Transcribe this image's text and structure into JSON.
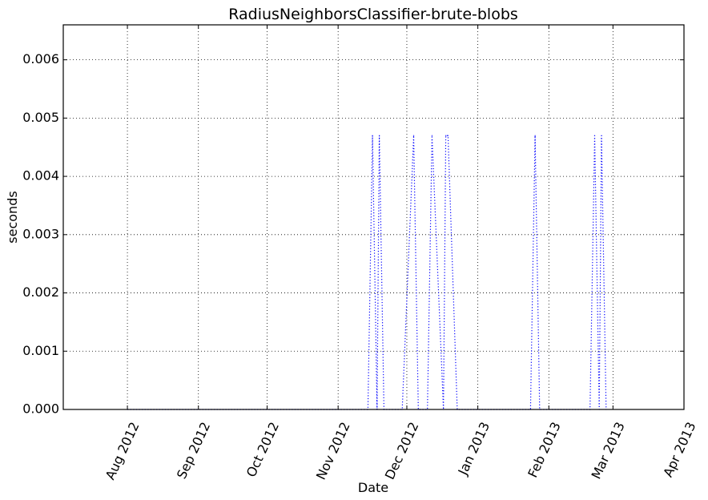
{
  "chart_data": {
    "type": "line",
    "title": "RadiusNeighborsClassifier-brute-blobs",
    "xlabel": "Date",
    "ylabel": "seconds",
    "xlim": [
      "2012-07-04",
      "2013-04-01"
    ],
    "ylim": [
      0,
      0.0066
    ],
    "grid": true,
    "x_ticks": [
      {
        "date": "2012-08-01",
        "label": "Aug 2012"
      },
      {
        "date": "2012-09-01",
        "label": "Sep 2012"
      },
      {
        "date": "2012-10-01",
        "label": "Oct 2012"
      },
      {
        "date": "2012-11-01",
        "label": "Nov 2012"
      },
      {
        "date": "2012-12-01",
        "label": "Dec 2012"
      },
      {
        "date": "2013-01-01",
        "label": "Jan 2013"
      },
      {
        "date": "2013-02-01",
        "label": "Feb 2013"
      },
      {
        "date": "2013-03-01",
        "label": "Mar 2013"
      },
      {
        "date": "2013-04-01",
        "label": "Apr 2013"
      }
    ],
    "y_ticks": [
      {
        "value": 0,
        "label": "0.000"
      },
      {
        "value": 0.001,
        "label": "0.001"
      },
      {
        "value": 0.002,
        "label": "0.002"
      },
      {
        "value": 0.003,
        "label": "0.003"
      },
      {
        "value": 0.004,
        "label": "0.004"
      },
      {
        "value": 0.005,
        "label": "0.005"
      },
      {
        "value": 0.006,
        "label": "0.006"
      }
    ],
    "series": [
      {
        "color": "#0000ff",
        "style": "dotted",
        "points": [
          {
            "x": "2012-08-01",
            "y": 0
          },
          {
            "x": "2012-11-14",
            "y": 0
          },
          {
            "x": "2012-11-16",
            "y": 0.0047
          },
          {
            "x": "2012-11-18",
            "y": 0
          },
          {
            "x": "2012-11-19",
            "y": 0.0047
          },
          {
            "x": "2012-11-21",
            "y": 0
          },
          {
            "x": "2012-11-29",
            "y": 0
          },
          {
            "x": "2012-12-04",
            "y": 0.0047
          },
          {
            "x": "2012-12-06",
            "y": 0
          },
          {
            "x": "2012-12-10",
            "y": 0
          },
          {
            "x": "2012-12-12",
            "y": 0.0047
          },
          {
            "x": "2012-12-17",
            "y": 0
          },
          {
            "x": "2012-12-18",
            "y": 0.0047
          },
          {
            "x": "2012-12-19",
            "y": 0.0047
          },
          {
            "x": "2012-12-23",
            "y": 0
          },
          {
            "x": "2013-01-24",
            "y": 0
          },
          {
            "x": "2013-01-26",
            "y": 0.0047
          },
          {
            "x": "2013-01-28",
            "y": 0
          },
          {
            "x": "2013-02-19",
            "y": 0
          },
          {
            "x": "2013-02-21",
            "y": 0.0047
          },
          {
            "x": "2013-02-23",
            "y": 0
          },
          {
            "x": "2013-02-24",
            "y": 0.0047
          },
          {
            "x": "2013-02-26",
            "y": 0
          }
        ]
      }
    ]
  }
}
